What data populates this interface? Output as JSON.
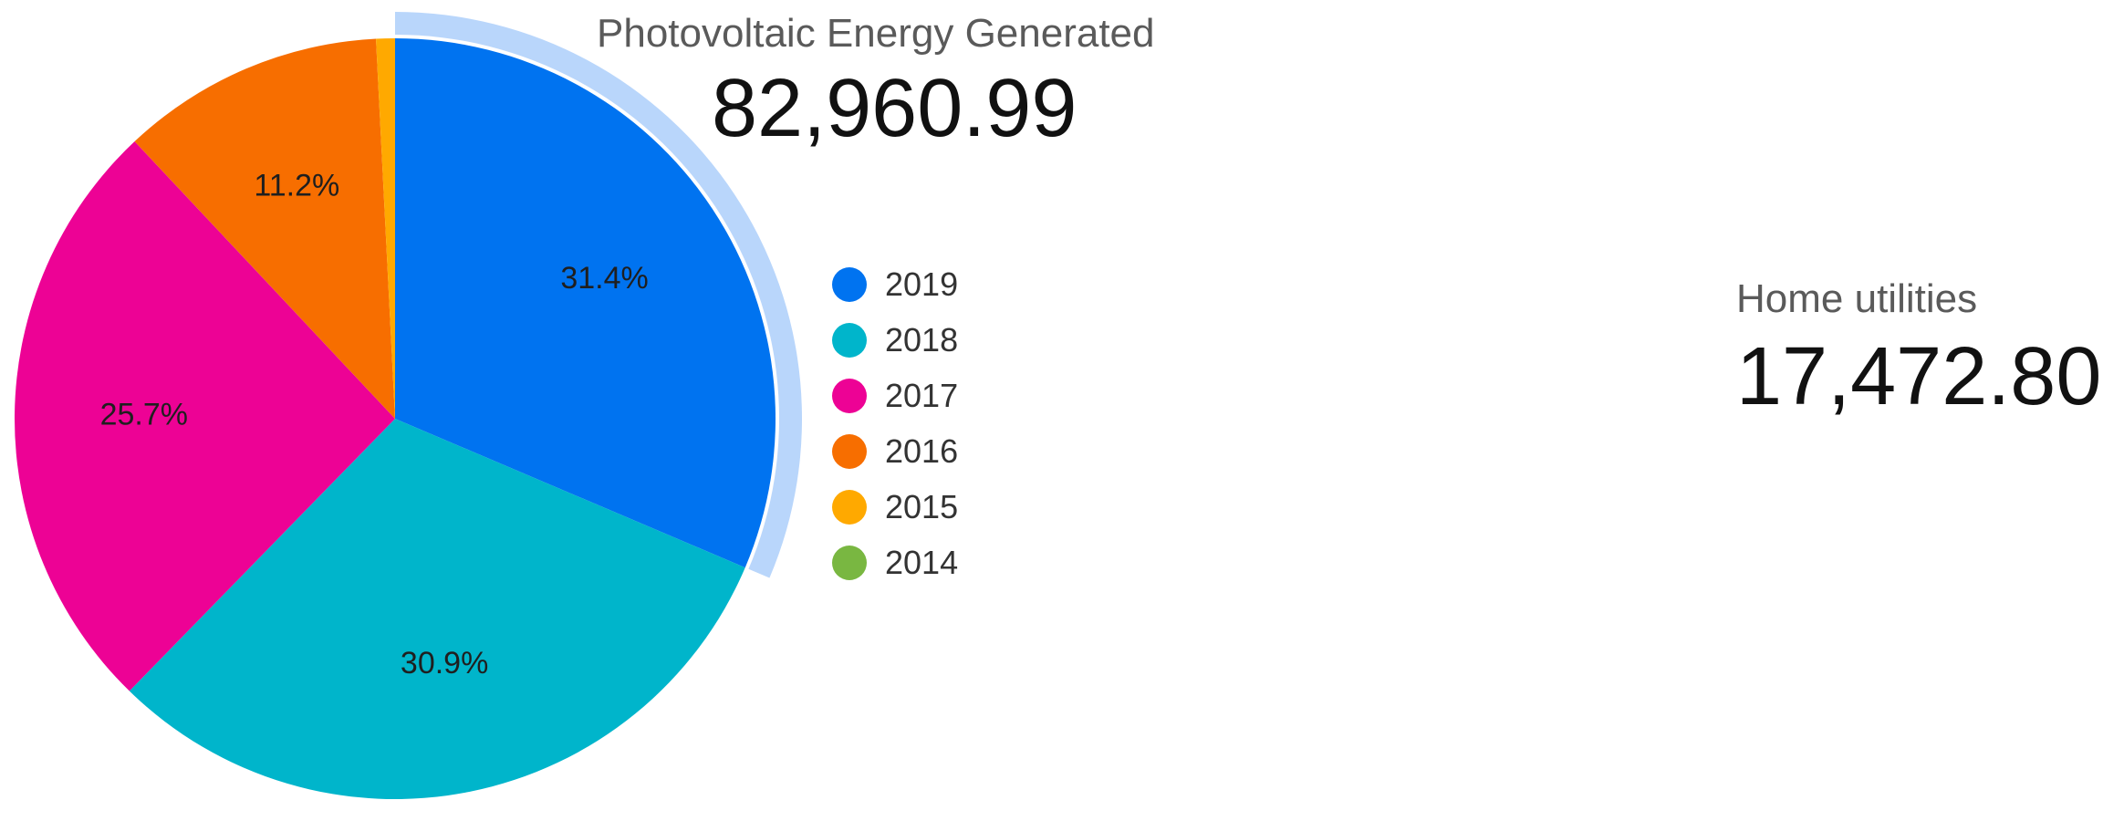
{
  "photovoltaic": {
    "label": "Photovoltaic Energy Generated",
    "value": "82,960.99"
  },
  "home_utilities": {
    "label": "Home utilities",
    "value": "17,472.80"
  },
  "chart_data": {
    "type": "pie",
    "title": "",
    "legend_position": "right",
    "highlighted_slice": "2019",
    "slices": [
      {
        "name": "2019",
        "percent": 31.4,
        "label": "31.4%",
        "color": "#0073f0"
      },
      {
        "name": "2018",
        "percent": 30.9,
        "label": "30.9%",
        "color": "#00b5cb"
      },
      {
        "name": "2017",
        "percent": 25.7,
        "label": "25.7%",
        "color": "#ed0295"
      },
      {
        "name": "2016",
        "percent": 11.2,
        "label": "11.2%",
        "color": "#f76e00"
      },
      {
        "name": "2015",
        "percent": 0.8,
        "label": "",
        "color": "#ffa900"
      },
      {
        "name": "2014",
        "percent": 0.0,
        "label": "",
        "color": "#79b741"
      }
    ],
    "highlight_ring_color": "#b9d6fb"
  }
}
